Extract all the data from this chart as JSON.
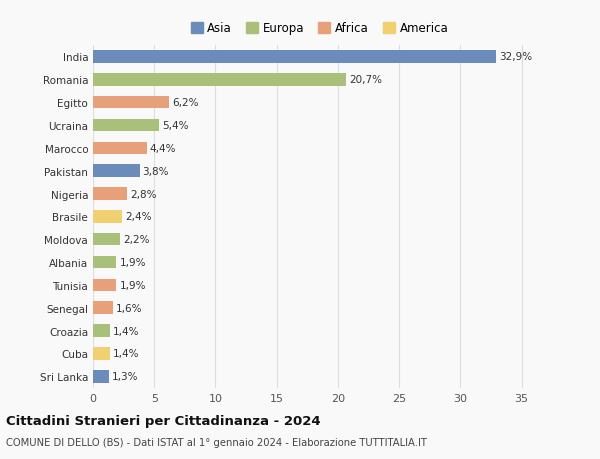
{
  "countries": [
    "India",
    "Romania",
    "Egitto",
    "Ucraina",
    "Marocco",
    "Pakistan",
    "Nigeria",
    "Brasile",
    "Moldova",
    "Albania",
    "Tunisia",
    "Senegal",
    "Croazia",
    "Cuba",
    "Sri Lanka"
  ],
  "values": [
    32.9,
    20.7,
    6.2,
    5.4,
    4.4,
    3.8,
    2.8,
    2.4,
    2.2,
    1.9,
    1.9,
    1.6,
    1.4,
    1.4,
    1.3
  ],
  "labels": [
    "32,9%",
    "20,7%",
    "6,2%",
    "5,4%",
    "4,4%",
    "3,8%",
    "2,8%",
    "2,4%",
    "2,2%",
    "1,9%",
    "1,9%",
    "1,6%",
    "1,4%",
    "1,4%",
    "1,3%"
  ],
  "continents": [
    "Asia",
    "Europa",
    "Africa",
    "Europa",
    "Africa",
    "Asia",
    "Africa",
    "America",
    "Europa",
    "Europa",
    "Africa",
    "Africa",
    "Europa",
    "America",
    "Asia"
  ],
  "continent_colors": {
    "Asia": "#6b8cba",
    "Europa": "#a8c07a",
    "Africa": "#e8a07a",
    "America": "#f0d070"
  },
  "legend_order": [
    "Asia",
    "Europa",
    "Africa",
    "America"
  ],
  "title": "Cittadini Stranieri per Cittadinanza - 2024",
  "subtitle": "COMUNE DI DELLO (BS) - Dati ISTAT al 1° gennaio 2024 - Elaborazione TUTTITALIA.IT",
  "xlim": [
    0,
    37
  ],
  "xticks": [
    0,
    5,
    10,
    15,
    20,
    25,
    30,
    35
  ],
  "background_color": "#f9f9f9",
  "grid_color": "#dddddd",
  "bar_height": 0.55
}
